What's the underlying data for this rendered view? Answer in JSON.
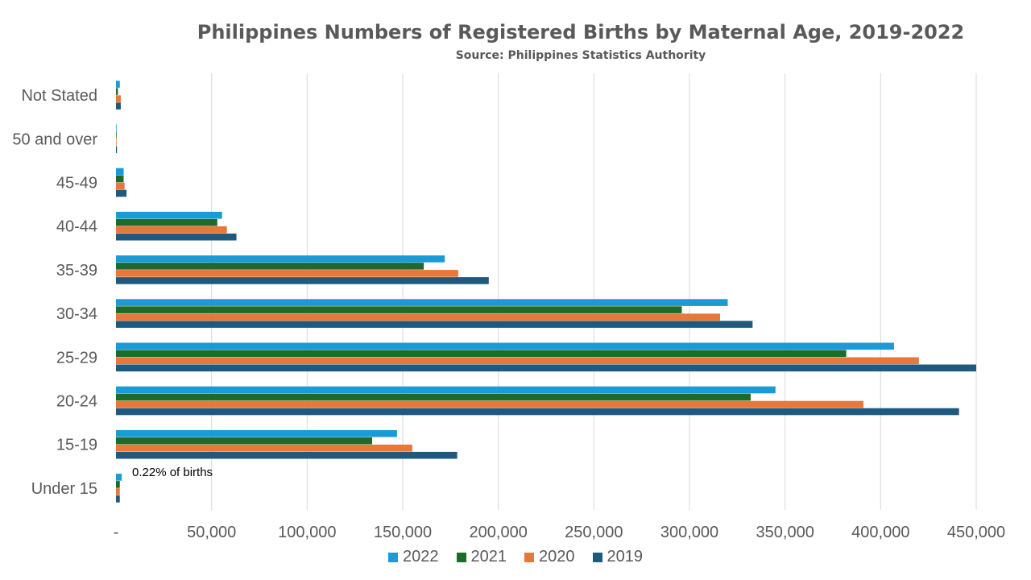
{
  "chart_data": {
    "type": "bar",
    "orientation": "horizontal",
    "title": "Philippines Numbers of Registered Births by Maternal Age, 2019-2022",
    "subtitle": "Source: Philippines Statistics Authority",
    "categories": [
      "Under 15",
      "15-19",
      "20-24",
      "25-29",
      "30-34",
      "35-39",
      "40-44",
      "45-49",
      "50 and over",
      "Not Stated"
    ],
    "series": [
      {
        "name": "2022",
        "color": "#1a9ad6",
        "values": [
          3000,
          147000,
          345000,
          407000,
          320000,
          172000,
          55500,
          4000,
          300,
          2000
        ]
      },
      {
        "name": "2021",
        "color": "#1d6b2b",
        "values": [
          2000,
          134000,
          332000,
          382000,
          296000,
          161000,
          53000,
          4000,
          300,
          1000
        ]
      },
      {
        "name": "2020",
        "color": "#e8773a",
        "values": [
          2000,
          155000,
          391000,
          420000,
          316000,
          179000,
          58000,
          4500,
          300,
          2500
        ]
      },
      {
        "name": "2019",
        "color": "#1f5a7e",
        "values": [
          2000,
          178500,
          441000,
          450000,
          333000,
          195000,
          63000,
          5500,
          500,
          2500
        ]
      }
    ],
    "xlim": [
      0,
      450000
    ],
    "xticks": [
      0,
      50000,
      100000,
      150000,
      200000,
      250000,
      300000,
      350000,
      400000,
      450000
    ],
    "xtick_labels": [
      "-",
      "50,000",
      "100,000",
      "150,000",
      "200,000",
      "250,000",
      "300,000",
      "350,000",
      "400,000",
      "450,000"
    ],
    "grid": true,
    "legend_position": "bottom",
    "annotations": [
      {
        "category": "Under 15",
        "text": "0.22% of births"
      }
    ]
  }
}
